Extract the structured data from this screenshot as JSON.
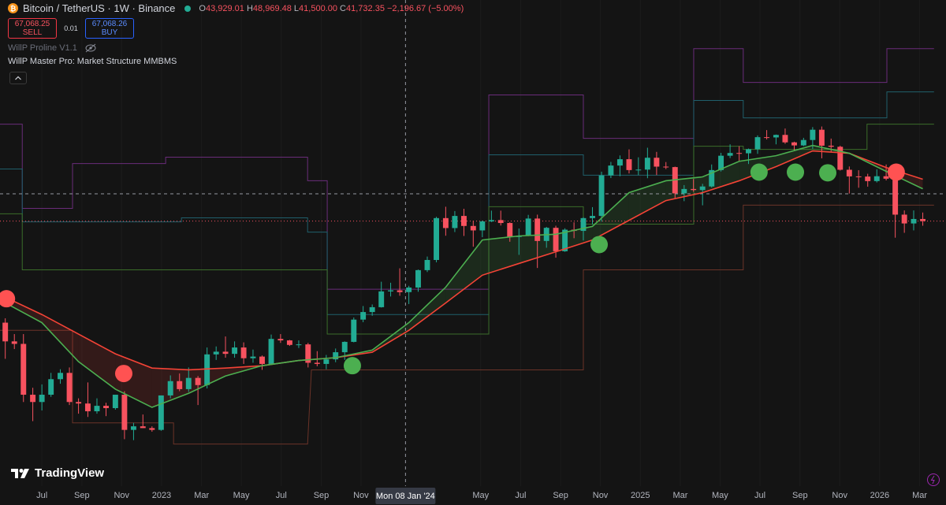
{
  "header": {
    "symbol": "Bitcoin / TetherUS · 1W · Binance",
    "ohlc": [
      {
        "label": "O",
        "value": "43,929.01"
      },
      {
        "label": "H",
        "value": "48,969.48"
      },
      {
        "label": "L",
        "value": "41,500.00"
      },
      {
        "label": "C",
        "value": "41,732.35"
      }
    ],
    "change": "−2,196.67 (−5.00%)",
    "sell_price": "67,068.25",
    "sell_label": "SELL",
    "quantity": "0.01",
    "buy_price": "67,068.26",
    "buy_label": "BUY",
    "indicator_1": "WillP Proline V1.1",
    "indicator_2": "WillP Master Pro: Market Structure MMBMS",
    "brand": "TradingView"
  },
  "chart_data": {
    "type": "candlestick",
    "log_scale": true,
    "grid": true,
    "up_color": "#22ab94",
    "down_color": "#f7525f",
    "xlim": [
      2022.325,
      2026.277
    ],
    "ylim": [
      11400,
      294000
    ],
    "xticks": [
      {
        "value": 2022.5,
        "label": "Jul"
      },
      {
        "value": 2022.667,
        "label": "Sep"
      },
      {
        "value": 2022.833,
        "label": "Nov"
      },
      2023,
      {
        "value": 2023.167,
        "label": "Mar"
      },
      {
        "value": 2023.333,
        "label": "May"
      },
      {
        "value": 2023.5,
        "label": "Jul"
      },
      {
        "value": 2023.667,
        "label": "Sep"
      },
      {
        "value": 2023.833,
        "label": "Nov"
      },
      {
        "value": 2024.333,
        "label": "May"
      },
      {
        "value": 2024.5,
        "label": "Jul"
      },
      {
        "value": 2024.667,
        "label": "Sep"
      },
      {
        "value": 2024.833,
        "label": "Nov"
      },
      2025,
      {
        "value": 2025.167,
        "label": "Mar"
      },
      {
        "value": 2025.333,
        "label": "May"
      },
      {
        "value": 2025.5,
        "label": "Jul"
      },
      {
        "value": 2025.667,
        "label": "Sep"
      },
      {
        "value": 2025.833,
        "label": "Nov"
      },
      2026,
      {
        "value": 2026.167,
        "label": "Mar"
      }
    ],
    "crosshair": {
      "x": 2024.019,
      "label": "Mon 08 Jan '24"
    },
    "x": [
      2022.347,
      2022.385,
      2022.423,
      2022.462,
      2022.5,
      2022.538,
      2022.577,
      2022.615,
      2022.653,
      2022.692,
      2022.73,
      2022.768,
      2022.807,
      2022.845,
      2022.883,
      2022.922,
      2022.96,
      2022.998,
      2023.037,
      2023.075,
      2023.113,
      2023.152,
      2023.19,
      2023.228,
      2023.267,
      2023.305,
      2023.343,
      2023.382,
      2023.42,
      2023.458,
      2023.497,
      2023.535,
      2023.573,
      2023.612,
      2023.65,
      2023.688,
      2023.727,
      2023.765,
      2023.803,
      2023.842,
      2023.88,
      2023.918,
      2023.957,
      2023.995,
      2024.033,
      2024.072,
      2024.11,
      2024.148,
      2024.187,
      2024.225,
      2024.263,
      2024.302,
      2024.34,
      2024.378,
      2024.417,
      2024.455,
      2024.493,
      2024.532,
      2024.57,
      2024.608,
      2024.647,
      2024.685,
      2024.723,
      2024.762,
      2024.8,
      2024.838,
      2024.877,
      2024.915,
      2024.953,
      2024.992,
      2025.03,
      2025.068,
      2025.107,
      2025.145,
      2025.183,
      2025.222,
      2025.26,
      2025.298,
      2025.337,
      2025.375,
      2025.413,
      2025.452,
      2025.49,
      2025.528,
      2025.567,
      2025.605,
      2025.643,
      2025.682,
      2025.72,
      2025.758,
      2025.797,
      2025.835,
      2025.873,
      2025.912,
      2025.95,
      2025.988,
      2026.027,
      2026.065,
      2026.103,
      2026.142,
      2026.18
    ],
    "open": [
      34000,
      30000,
      29500,
      21000,
      20000,
      21000,
      23300,
      24300,
      20000,
      19800,
      18800,
      19500,
      19200,
      21000,
      16600,
      17000,
      16800,
      16600,
      20900,
      23000,
      21800,
      23500,
      22400,
      27500,
      28000,
      27600,
      28800,
      26800,
      27100,
      25800,
      30500,
      30200,
      29300,
      29400,
      26000,
      25800,
      26600,
      27900,
      29900,
      34700,
      36500,
      37700,
      41900,
      42200,
      41700,
      43000,
      48300,
      51700,
      68400,
      64000,
      69400,
      64900,
      63000,
      66900,
      67500,
      66200,
      60300,
      60800,
      68200,
      58700,
      64100,
      54800,
      63300,
      62800,
      68400,
      69400,
      91000,
      97200,
      101400,
      94300,
      94600,
      102400,
      96500,
      96200,
      80700,
      83100,
      82500,
      84500,
      94300,
      103800,
      105700,
      105500,
      108400,
      117500,
      117300,
      119300,
      113500,
      111200,
      115300,
      123500,
      111000,
      110200,
      94500,
      90400,
      90300,
      87600,
      90500,
      89000,
      70000,
      66000,
      68000
    ],
    "high": [
      35000,
      31500,
      31500,
      22000,
      22500,
      24300,
      24900,
      25200,
      20500,
      22800,
      20500,
      19900,
      21000,
      21500,
      17400,
      18400,
      17000,
      20900,
      23900,
      24200,
      25200,
      23800,
      28800,
      29000,
      31000,
      30000,
      29800,
      28400,
      27300,
      31400,
      31500,
      30300,
      30200,
      29700,
      28100,
      27400,
      28600,
      30000,
      35200,
      38000,
      38400,
      44700,
      44400,
      48900,
      43500,
      48500,
      52900,
      69000,
      73800,
      71700,
      72800,
      67200,
      67300,
      71900,
      71900,
      66500,
      63800,
      69900,
      70000,
      64500,
      65000,
      63900,
      66500,
      68800,
      73600,
      93300,
      99600,
      104000,
      108300,
      102700,
      109500,
      106500,
      99500,
      96500,
      85300,
      88800,
      86000,
      97900,
      105800,
      112000,
      110600,
      108900,
      118900,
      123200,
      119600,
      124500,
      114000,
      117000,
      125700,
      126200,
      116400,
      111000,
      96600,
      94200,
      92000,
      94800,
      97900,
      90000,
      72000,
      72000,
      71000
    ],
    "low": [
      26700,
      28500,
      20000,
      17600,
      18900,
      20700,
      22600,
      19600,
      18500,
      18100,
      18500,
      18200,
      19000,
      15600,
      15500,
      16800,
      16400,
      16500,
      20500,
      21500,
      21400,
      19600,
      21900,
      26500,
      26900,
      26900,
      25800,
      26000,
      24800,
      25700,
      29700,
      29100,
      28700,
      25200,
      25400,
      24900,
      26100,
      26500,
      29800,
      34100,
      35600,
      37600,
      40500,
      40700,
      38500,
      41800,
      47700,
      50900,
      60800,
      62300,
      60700,
      56500,
      60200,
      66600,
      65100,
      58400,
      53500,
      60600,
      49000,
      56100,
      52500,
      54600,
      59800,
      58900,
      65500,
      66800,
      89400,
      90500,
      92200,
      91200,
      89300,
      91200,
      94900,
      78200,
      76600,
      81600,
      74500,
      83900,
      93400,
      102200,
      100400,
      98200,
      105100,
      115700,
      112000,
      112400,
      107300,
      110600,
      108600,
      102000,
      106200,
      94000,
      80600,
      83800,
      84400,
      86800,
      88000,
      60000,
      62000,
      63000,
      65000
    ],
    "close": [
      30000,
      29500,
      21000,
      20000,
      21000,
      23300,
      24300,
      20000,
      19800,
      18800,
      19500,
      19200,
      21000,
      16600,
      17000,
      16800,
      16600,
      20900,
      23000,
      21800,
      23500,
      22400,
      27500,
      28000,
      27600,
      28800,
      26800,
      27100,
      25800,
      30500,
      30200,
      29300,
      29400,
      26000,
      25800,
      26600,
      27900,
      29900,
      34700,
      36500,
      37700,
      41900,
      42200,
      41700,
      43000,
      48300,
      51700,
      68400,
      64000,
      69400,
      64900,
      63000,
      66900,
      67500,
      66200,
      60300,
      60800,
      68200,
      58700,
      64100,
      54800,
      63300,
      62800,
      68400,
      69400,
      91000,
      97200,
      101400,
      94300,
      94600,
      102400,
      96500,
      96200,
      80700,
      83100,
      82500,
      84500,
      94300,
      103800,
      105700,
      105500,
      108400,
      117500,
      117300,
      119300,
      113500,
      111200,
      115300,
      123500,
      111000,
      110200,
      94500,
      90400,
      90300,
      87600,
      90500,
      89000,
      70000,
      66000,
      68000,
      67068.25
    ],
    "ma": {
      "x": [
        2022.347,
        2022.5,
        2022.653,
        2022.807,
        2022.96,
        2023.113,
        2023.267,
        2023.42,
        2023.573,
        2023.727,
        2023.88,
        2024.033,
        2024.187,
        2024.34,
        2024.493,
        2024.647,
        2024.8,
        2024.953,
        2025.107,
        2025.26,
        2025.413,
        2025.567,
        2025.72,
        2025.873,
        2026.027,
        2026.18
      ],
      "fast": {
        "color": "#4caf50",
        "values": [
          38800,
          34000,
          26200,
          21800,
          19300,
          21200,
          23800,
          25500,
          26400,
          26900,
          28300,
          34000,
          43100,
          59100,
          60700,
          61400,
          64700,
          81100,
          87800,
          90100,
          100000,
          103800,
          111200,
          105500,
          93500,
          83200
        ]
      },
      "slow": {
        "color": "#f44336",
        "values": [
          40300,
          35900,
          31500,
          27600,
          25100,
          24800,
          25100,
          25500,
          26400,
          26900,
          27900,
          32300,
          38800,
          46700,
          50500,
          54600,
          59100,
          67400,
          76900,
          81100,
          87800,
          96500,
          107200,
          105500,
          95900,
          88700
        ]
      }
    },
    "levels": [
      {
        "color": "#6a2c7a",
        "x": [
          2022.325,
          2022.418,
          2022.418,
          2022.628,
          2022.628,
          2023.017,
          2023.017,
          2023.61,
          2023.61,
          2023.692,
          2023.692,
          2024.367,
          2024.367,
          2024.762,
          2024.762,
          2025.223,
          2025.223,
          2025.43,
          2025.43,
          2026.03,
          2026.03,
          2026.227
        ],
        "values": [
          128200,
          128200,
          73000,
          73000,
          98500,
          98500,
          102800,
          102800,
          87800,
          87800,
          42500,
          42500,
          155800,
          155800,
          116600,
          116600,
          212400,
          212400,
          169400,
          169400,
          212400,
          212400
        ]
      },
      {
        "color": "#1f5f6b",
        "x": [
          2022.325,
          2022.418,
          2022.418,
          2023.083,
          2023.083,
          2023.61,
          2023.61,
          2023.692,
          2023.692,
          2024.367,
          2024.367,
          2024.762,
          2024.762,
          2025.223,
          2025.223,
          2025.43,
          2025.43,
          2026.03,
          2026.03,
          2026.227
        ],
        "values": [
          95000,
          95000,
          66700,
          66700,
          68500,
          68500,
          62300,
          62300,
          35900,
          35900,
          104400,
          104400,
          91100,
          91100,
          150200,
          150200,
          133700,
          133700,
          159100,
          159100
        ]
      },
      {
        "color": "#3b6e2a",
        "x": [
          2022.325,
          2022.418,
          2022.418,
          2023.692,
          2023.692,
          2024.367,
          2024.367,
          2024.762,
          2024.762,
          2025.223,
          2025.223,
          2025.43,
          2025.43,
          2025.947,
          2025.947,
          2026.227
        ],
        "values": [
          70400,
          70400,
          48400,
          48400,
          31500,
          31500,
          73800,
          73800,
          65700,
          65700,
          110600,
          110600,
          108300,
          108300,
          128200,
          128200
        ]
      },
      {
        "color": "#6b3328",
        "x": [
          2022.325,
          2022.628,
          2022.628,
          2023.05,
          2023.05,
          2023.61,
          2023.626,
          2024.762,
          2024.762,
          2025.43,
          2025.43,
          2026.227
        ],
        "values": [
          32300,
          32300,
          17400,
          17400,
          15100,
          15100,
          24800,
          24800,
          48400,
          48400,
          74600,
          74600
        ]
      }
    ],
    "signals": {
      "x": [
        2022.352,
        2022.842,
        2023.797,
        2024.828,
        2025.496,
        2025.648,
        2025.783,
        2026.069
      ],
      "values": [
        39900,
        24200,
        25500,
        57300,
        93000,
        93000,
        92600,
        93000
      ],
      "colors": [
        "#ff5252",
        "#ff5252",
        "#4caf50",
        "#4caf50",
        "#4caf50",
        "#4caf50",
        "#4caf50",
        "#ff5252"
      ]
    }
  }
}
